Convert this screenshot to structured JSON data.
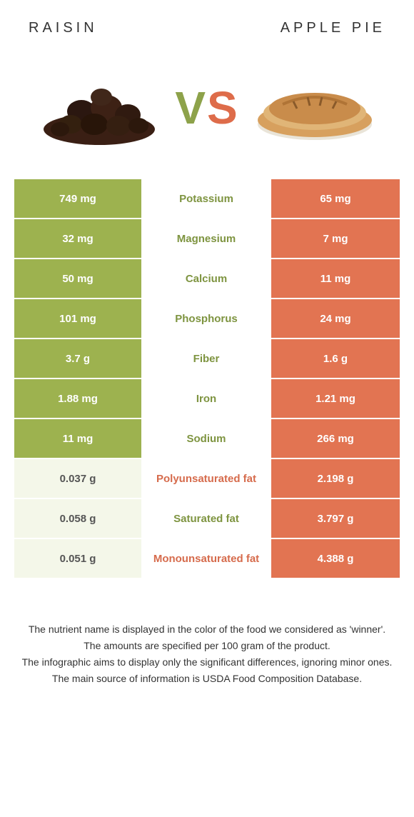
{
  "colors": {
    "left_bg_strong": "#9db24f",
    "left_bg_weak": "#f4f7e9",
    "right_bg_strong": "#e27452",
    "right_bg_weak": "#fbeee9",
    "left_label": "#7e9440",
    "right_label": "#d66b4c",
    "left_text_on_strong": "#ffffff",
    "right_text_on_strong": "#ffffff",
    "text_weak": "#555555"
  },
  "header": {
    "left_title": "Raisin",
    "right_title": "Apple Pie"
  },
  "vs": {
    "v": "V",
    "s": "S"
  },
  "rows": [
    {
      "label": "Potassium",
      "left": "749 mg",
      "right": "65 mg",
      "winner": "left"
    },
    {
      "label": "Magnesium",
      "left": "32 mg",
      "right": "7 mg",
      "winner": "left"
    },
    {
      "label": "Calcium",
      "left": "50 mg",
      "right": "11 mg",
      "winner": "left"
    },
    {
      "label": "Phosphorus",
      "left": "101 mg",
      "right": "24 mg",
      "winner": "left"
    },
    {
      "label": "Fiber",
      "left": "3.7 g",
      "right": "1.6 g",
      "winner": "left"
    },
    {
      "label": "Iron",
      "left": "1.88 mg",
      "right": "1.21 mg",
      "winner": "left"
    },
    {
      "label": "Sodium",
      "left": "11 mg",
      "right": "266 mg",
      "winner": "left"
    },
    {
      "label": "Polyunsaturated fat",
      "left": "0.037 g",
      "right": "2.198 g",
      "winner": "right"
    },
    {
      "label": "Saturated fat",
      "left": "0.058 g",
      "right": "3.797 g",
      "winner": "left"
    },
    {
      "label": "Monounsaturated fat",
      "left": "0.051 g",
      "right": "4.388 g",
      "winner": "right"
    }
  ],
  "notes": [
    "The nutrient name is displayed in the color of the food we considered as 'winner'.",
    "The amounts are specified per 100 gram of the product.",
    "The infographic aims to display only the significant differences, ignoring minor ones.",
    "The main source of information is USDA Food Composition Database."
  ]
}
